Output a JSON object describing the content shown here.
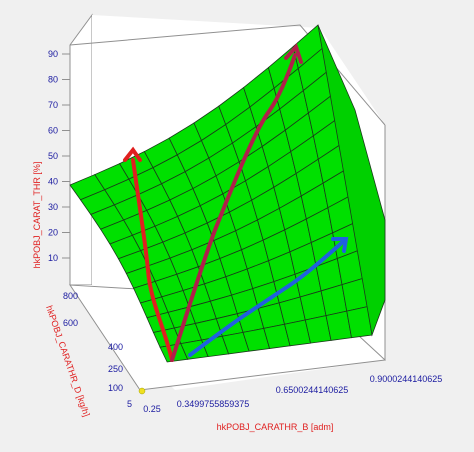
{
  "chart_data": {
    "type": "surface3d",
    "zlabel": "hkPOBJ_CARAT_THR [%]",
    "ylabel": "hkPOBJ_CARATHR_D [kg/h]",
    "xlabel": "hkPOBJ_CARATHR_B [adm]",
    "z_ticks": [
      "10",
      "20",
      "30",
      "40",
      "50",
      "60",
      "70",
      "80",
      "90"
    ],
    "y_ticks": [
      "5",
      "100",
      "250",
      "400",
      "600",
      "800"
    ],
    "x_ticks": [
      "0.25",
      "0.3499755859375",
      "0.6500244140625",
      "0.9000244140625"
    ],
    "zlim": [
      0,
      90
    ],
    "xlim": [
      0.25,
      0.9000244140625
    ],
    "ylim": [
      5,
      800
    ],
    "surface_color": "#00e000",
    "annotations": [
      {
        "color": "#e02020",
        "label": "red-arrow"
      },
      {
        "color": "#b0204a",
        "label": "purple-arrow"
      },
      {
        "color": "#2060e0",
        "label": "blue-arrow"
      }
    ]
  }
}
